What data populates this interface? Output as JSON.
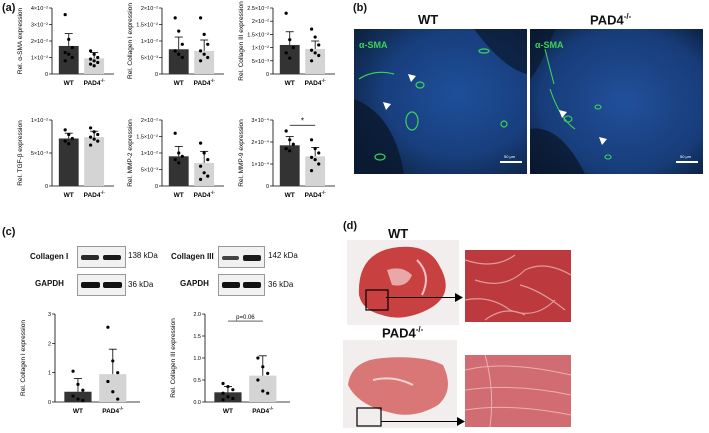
{
  "panels": {
    "a": "(a)",
    "b": "(b)",
    "c": "(c)",
    "d": "(d)"
  },
  "groups": {
    "wt": "WT",
    "ko": "PAD4",
    "ko_sup": "-/-"
  },
  "colors": {
    "wt_bar": "#333333",
    "ko_bar": "#d4d4d4",
    "stain_green": "#3cd25a",
    "nuclei_blue": "#1d3f8f",
    "he_red": "#c23a3a",
    "arrow": "#000000"
  },
  "chart_data": [
    {
      "id": "asma",
      "type": "bar",
      "ylabel": "Rel. α-SMA expression",
      "ticks": [
        "0",
        "1×10⁻²",
        "2×10⁻²",
        "3×10⁻²",
        "4×10⁻²"
      ],
      "ylim": [
        0,
        0.04
      ],
      "values": [
        0.017,
        0.0095
      ],
      "err": [
        0.0075,
        0.0035
      ],
      "points": [
        [
          0.036,
          0.021,
          0.016,
          0.013,
          0.012,
          0.01,
          0.008
        ],
        [
          0.014,
          0.012,
          0.01,
          0.009,
          0.008,
          0.007,
          0.006,
          0.005
        ]
      ]
    },
    {
      "id": "col1",
      "type": "bar",
      "ylabel": "Rel. Collagen I expression",
      "ticks": [
        "0",
        "5×10⁻³",
        "1×10⁻²",
        "1.5×10⁻²",
        "2×10⁻²"
      ],
      "ylim": [
        0,
        0.02
      ],
      "values": [
        0.0075,
        0.007
      ],
      "err": [
        0.0037,
        0.0033
      ],
      "points": [
        [
          0.017,
          0.013,
          0.009,
          0.007,
          0.006,
          0.005
        ],
        [
          0.017,
          0.012,
          0.009,
          0.007,
          0.006,
          0.005,
          0.004
        ]
      ]
    },
    {
      "id": "col3",
      "type": "bar",
      "ylabel": "Rel. Collagen III expression",
      "ticks": [
        "0",
        "5×10⁻³",
        "1×10⁻²",
        "1.5×10⁻²",
        "2×10⁻²",
        "2.5×10⁻²"
      ],
      "ylim": [
        0,
        0.025
      ],
      "values": [
        0.011,
        0.0095
      ],
      "err": [
        0.005,
        0.003
      ],
      "points": [
        [
          0.023,
          0.013,
          0.01,
          0.008,
          0.006
        ],
        [
          0.017,
          0.014,
          0.011,
          0.009,
          0.008,
          0.007,
          0.005
        ]
      ]
    },
    {
      "id": "tgfb",
      "type": "bar",
      "ylabel": "Rel. TGF-β expression",
      "ticks": [
        "0",
        "5×10⁻³",
        "1×10⁻²"
      ],
      "ylim": [
        0,
        0.01
      ],
      "values": [
        0.0072,
        0.0074
      ],
      "err": [
        0.0008,
        0.0009
      ],
      "points": [
        [
          0.0085,
          0.0078,
          0.0072,
          0.0068,
          0.0064
        ],
        [
          0.0088,
          0.0082,
          0.0078,
          0.0074,
          0.0071,
          0.0068,
          0.0062
        ]
      ]
    },
    {
      "id": "mmp2",
      "type": "bar",
      "ylabel": "Rel. MMP-2 expression",
      "ticks": [
        "0",
        "5×10⁻³",
        "1×10⁻²",
        "1.5×10⁻²",
        "2×10⁻²"
      ],
      "ylim": [
        0,
        0.02
      ],
      "values": [
        0.009,
        0.007
      ],
      "err": [
        0.003,
        0.0035
      ],
      "points": [
        [
          0.016,
          0.01,
          0.009,
          0.008,
          0.007
        ],
        [
          0.013,
          0.01,
          0.008,
          0.006,
          0.004,
          0.003,
          0.002
        ]
      ]
    },
    {
      "id": "mmp9",
      "type": "bar",
      "ylabel": "Rel. MMP-9 expression",
      "ticks": [
        "0",
        "1×10⁻⁴",
        "2×10⁻⁴",
        "3×10⁻⁴"
      ],
      "ylim": [
        0,
        0.0003
      ],
      "values": [
        0.000185,
        0.000135
      ],
      "err": [
        4e-05,
        4e-05
      ],
      "points": [
        [
          0.00025,
          0.00021,
          0.00019,
          0.00017,
          0.00016
        ],
        [
          0.00021,
          0.00017,
          0.00015,
          0.00013,
          0.00012,
          0.0001,
          7e-05
        ]
      ],
      "annotation": "*"
    },
    {
      "id": "wb_col1",
      "type": "bar",
      "ylabel": "Rel. Collagen I expression",
      "ticks": [
        "0",
        "1",
        "2",
        "3"
      ],
      "ylim": [
        0,
        3
      ],
      "values": [
        0.35,
        0.95
      ],
      "err": [
        0.45,
        0.85
      ],
      "points": [
        [
          1.05,
          0.6,
          0.4,
          0.2,
          0.1,
          0.05
        ],
        [
          2.55,
          1.4,
          1.0,
          0.7,
          0.35,
          0.1
        ]
      ]
    },
    {
      "id": "wb_col3",
      "type": "bar",
      "ylabel": "Rel. Collagen III expression",
      "ticks": [
        "0.0",
        "0.5",
        "1.0",
        "1.5",
        "2.0"
      ],
      "ylim": [
        0,
        2
      ],
      "values": [
        0.22,
        0.6
      ],
      "err": [
        0.13,
        0.45
      ],
      "points": [
        [
          0.42,
          0.35,
          0.28,
          0.2,
          0.12,
          0.08,
          0.05
        ],
        [
          1.0,
          0.8,
          0.65,
          0.5,
          0.25,
          0.2
        ]
      ],
      "annotation": "p=0.06"
    }
  ],
  "fluor": {
    "wt_title": "WT",
    "ko_title": "PAD4",
    "ko_sup": "-/-",
    "stain": "α-SMA",
    "scale_bar": "50 µm"
  },
  "western": [
    {
      "protein": "Collagen I",
      "kda": "138 kDa",
      "control": "GAPDH",
      "control_kda": "36 kDa"
    },
    {
      "protein": "Collagen III",
      "kda": "142 kDa",
      "control": "GAPDH",
      "control_kda": "36 kDa"
    }
  ],
  "he": {
    "wt_title": "WT",
    "ko_title": "PAD4",
    "ko_sup": "-/-"
  }
}
